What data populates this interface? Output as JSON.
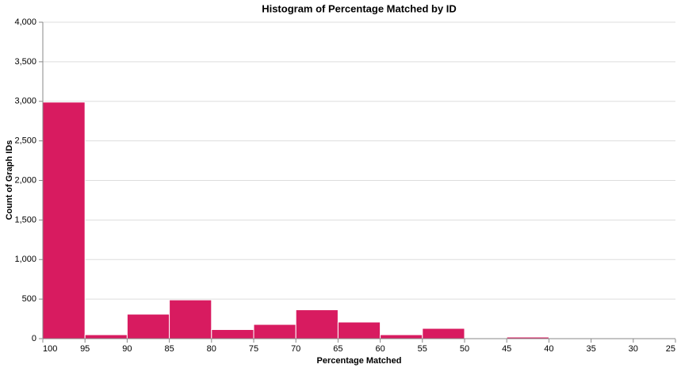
{
  "chart_data": {
    "type": "histogram",
    "title": "Histogram of Percentage Matched by ID",
    "x_label": "Percentage Matched",
    "y_label": "Count of Graph IDs",
    "bins": [
      100,
      95,
      90,
      85,
      80,
      75,
      70,
      65,
      60,
      55,
      50,
      45,
      40,
      35,
      30,
      25
    ],
    "counts": [
      2990,
      50,
      310,
      490,
      115,
      180,
      365,
      210,
      50,
      130,
      0,
      20,
      5,
      0,
      5
    ],
    "color": "#d81b60",
    "xlim": [
      100,
      25
    ],
    "xticks": [
      100,
      95,
      90,
      85,
      80,
      75,
      70,
      65,
      60,
      55,
      50,
      45,
      40,
      35,
      30,
      25
    ],
    "ylim": [
      0,
      4000
    ],
    "yticks": [
      0,
      500,
      {
        "value": 1000,
        "label": "1,000"
      },
      {
        "value": 1500,
        "label": "1,500"
      },
      {
        "value": 2000,
        "label": "2,000"
      },
      {
        "value": 2500,
        "label": "2,500"
      },
      {
        "value": 3000,
        "label": "3,000"
      },
      {
        "value": 3500,
        "label": "3,500"
      },
      {
        "value": 4000,
        "label": "4,000"
      }
    ],
    "grid": true
  }
}
